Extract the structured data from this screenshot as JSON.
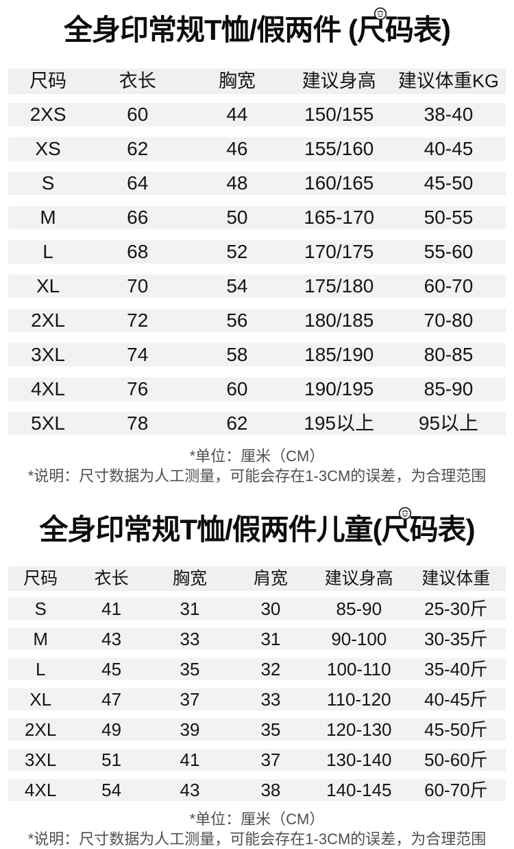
{
  "colors": {
    "stripe": "#f2f2f2",
    "header_bg": "#f0f0f0",
    "text": "#141414",
    "note_text": "#4f4f4f",
    "page_bg": "#ffffff"
  },
  "icons": {
    "stamp_badge": "circular-stamp-icon"
  },
  "adult_table": {
    "title_prefix": "全身印常规T恤/假两件 ",
    "title_suffix": "(尺码表)",
    "columns": [
      "尺码",
      "衣长",
      "胸宽",
      "建议身高",
      "建议体重KG"
    ],
    "rows": [
      [
        "2XS",
        "60",
        "44",
        "150/155",
        "38-40"
      ],
      [
        "XS",
        "62",
        "46",
        "155/160",
        "40-45"
      ],
      [
        "S",
        "64",
        "48",
        "160/165",
        "45-50"
      ],
      [
        "M",
        "66",
        "50",
        "165-170",
        "50-55"
      ],
      [
        "L",
        "68",
        "52",
        "170/175",
        "55-60"
      ],
      [
        "XL",
        "70",
        "54",
        "175/180",
        "60-70"
      ],
      [
        "2XL",
        "72",
        "56",
        "180/185",
        "70-80"
      ],
      [
        "3XL",
        "74",
        "58",
        "185/190",
        "80-85"
      ],
      [
        "4XL",
        "76",
        "60",
        "190/195",
        "85-90"
      ],
      [
        "5XL",
        "78",
        "62",
        "195以上",
        "95以上"
      ]
    ],
    "unit_note": "*单位：厘米（CM）",
    "measure_note": "*说明：尺寸数据为人工测量，可能会存在1-3CM的误差，为合理范围"
  },
  "kids_table": {
    "title_prefix": "全身印常规T恤/假两件儿童",
    "title_suffix": "(尺码表)",
    "columns": [
      "尺码",
      "衣长",
      "胸宽",
      "肩宽",
      "建议身高",
      "建议体重"
    ],
    "rows": [
      [
        "S",
        "41",
        "31",
        "30",
        "85-90",
        "25-30斤"
      ],
      [
        "M",
        "43",
        "33",
        "31",
        "90-100",
        "30-35斤"
      ],
      [
        "L",
        "45",
        "35",
        "32",
        "100-110",
        "35-40斤"
      ],
      [
        "XL",
        "47",
        "37",
        "33",
        "110-120",
        "40-45斤"
      ],
      [
        "2XL",
        "49",
        "39",
        "35",
        "120-130",
        "45-50斤"
      ],
      [
        "3XL",
        "51",
        "41",
        "37",
        "130-140",
        "50-60斤"
      ],
      [
        "4XL",
        "54",
        "43",
        "38",
        "140-145",
        "60-70斤"
      ]
    ],
    "unit_note": "*单位：厘米（CM）",
    "measure_note": "*说明：尺寸数据为人工测量，可能会存在1-3CM的误差，为合理范围"
  }
}
